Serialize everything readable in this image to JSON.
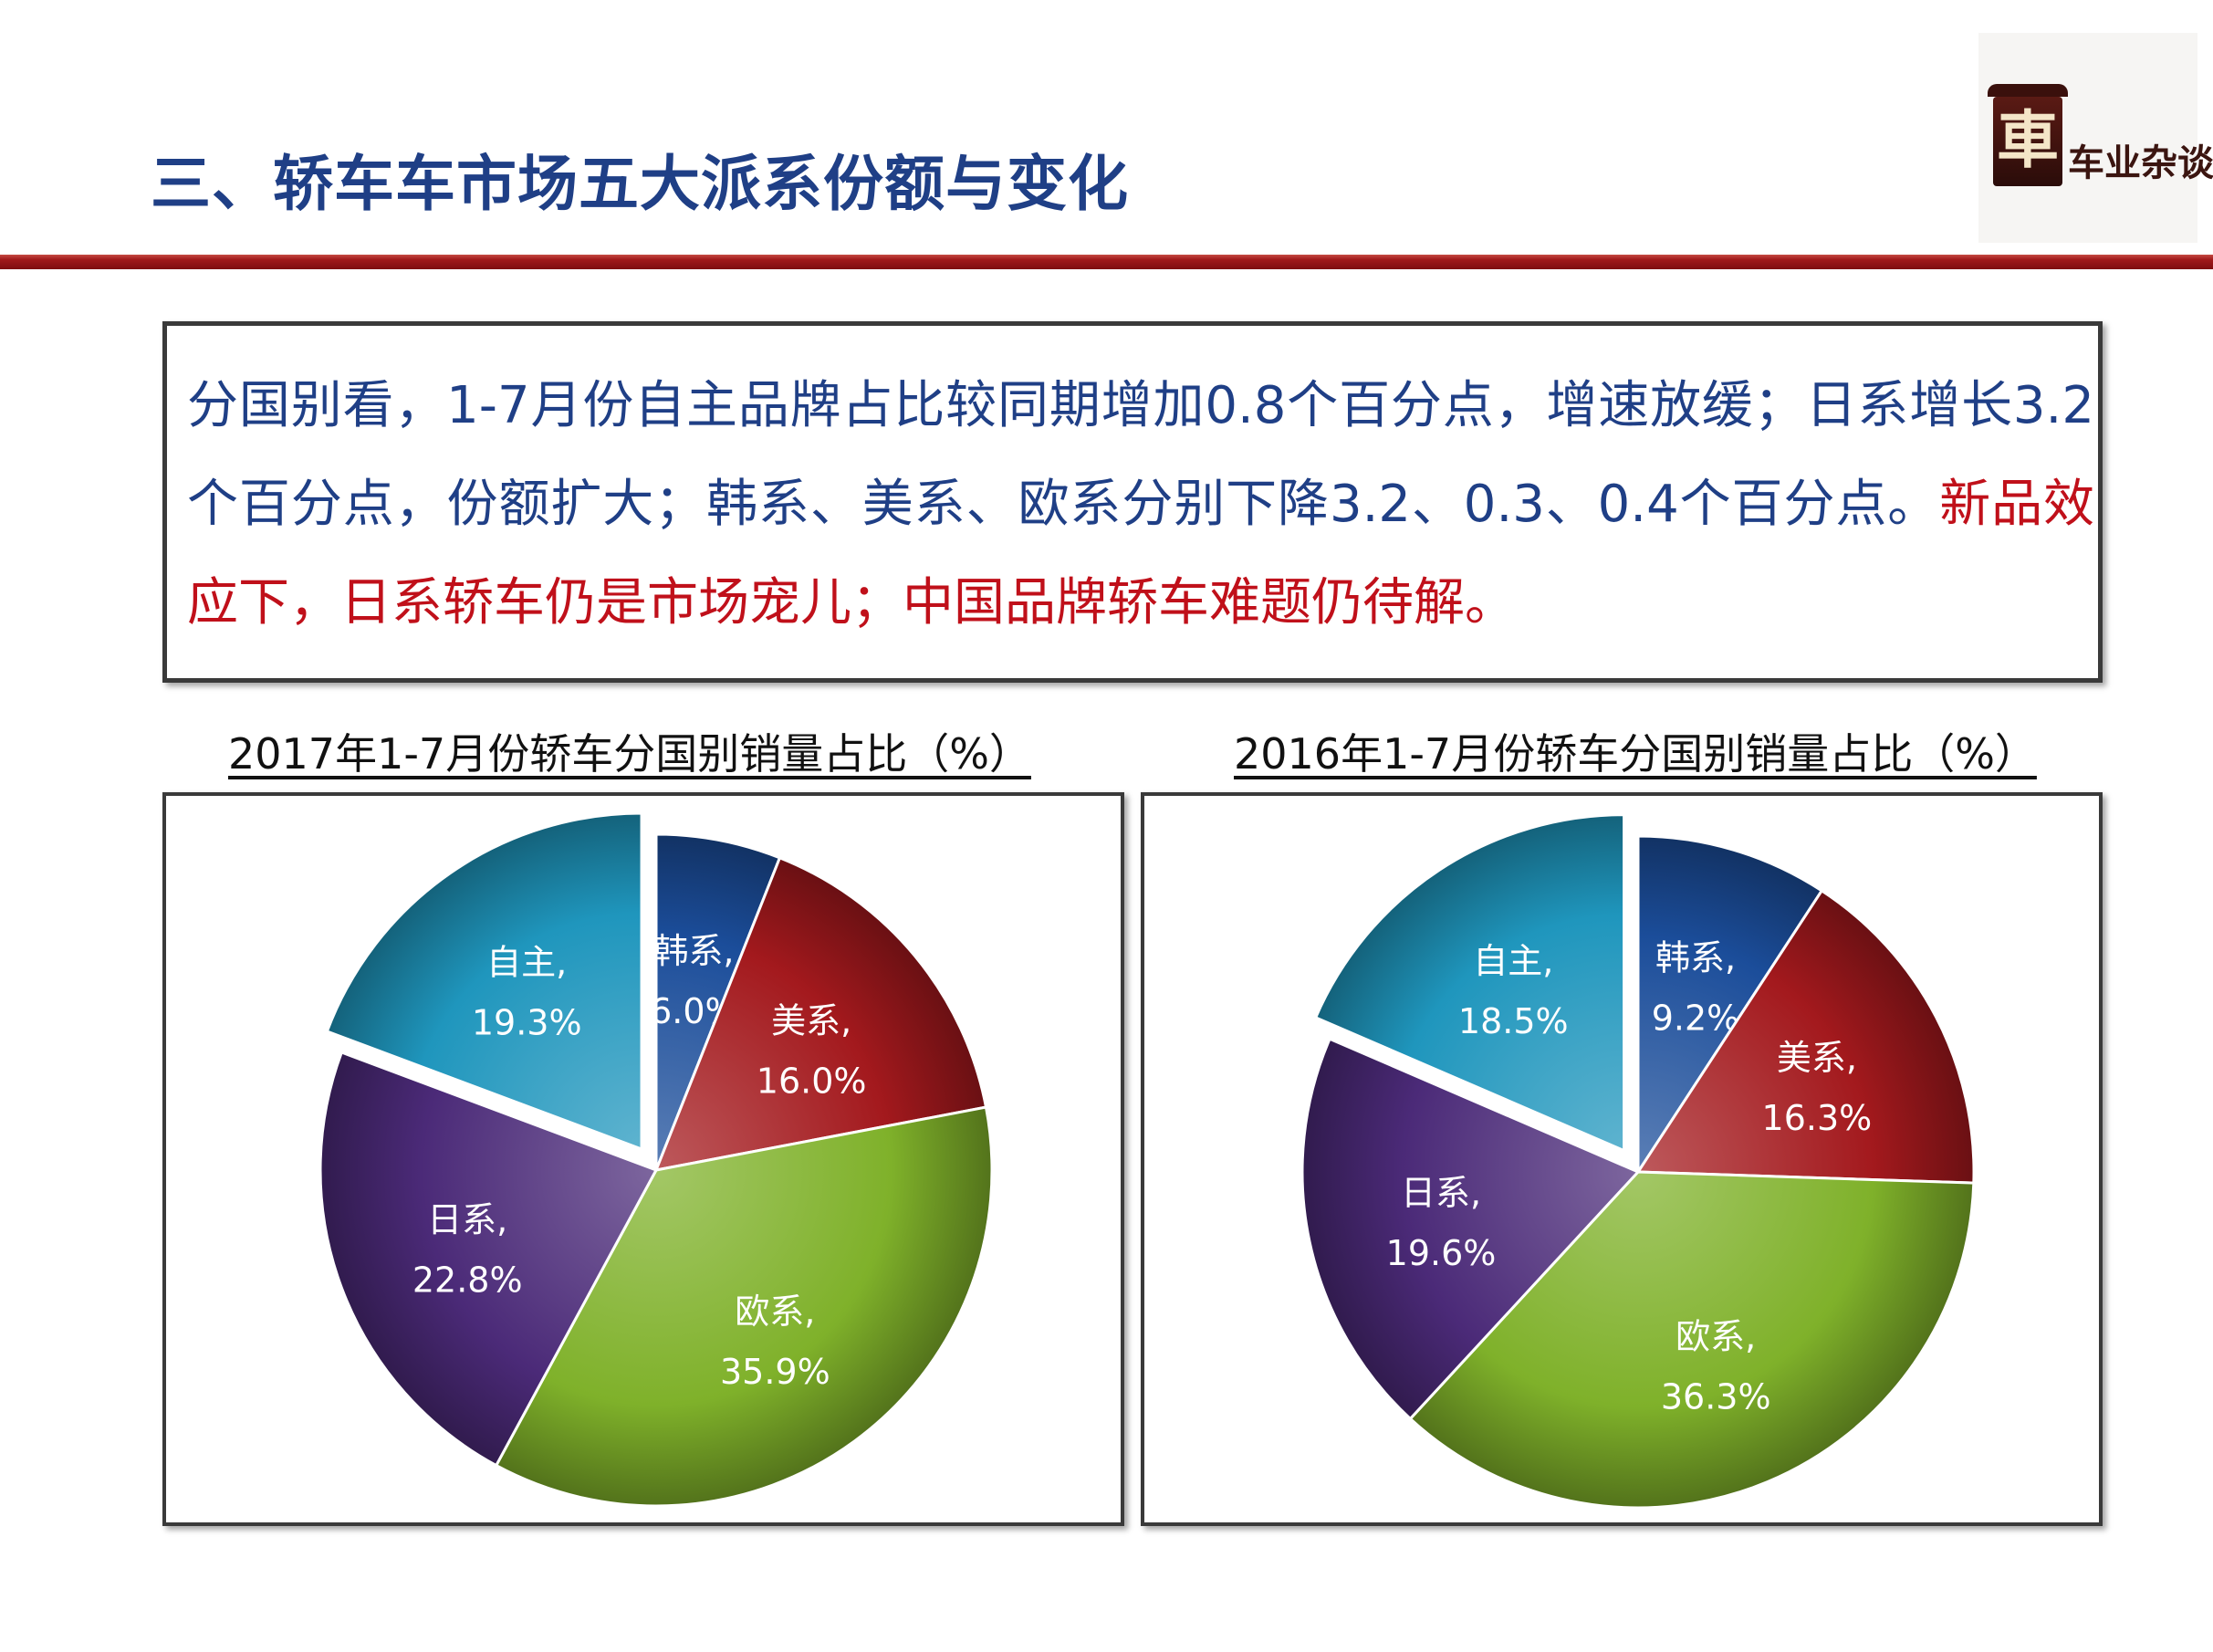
{
  "header": {
    "title": "三、轿车车市场五大派系份额与变化",
    "logo_text": "车业杂谈",
    "logo_mark": "車"
  },
  "summary": {
    "text_part1": "分国别看，1-7月份自主品牌占比较同期增加0.8个百分点，增速放缓；日系增长3.2个百分点，份额扩大；韩系、美系、欧系分别下降3.2、0.3、0.4个百分点。",
    "text_part2": "新品效应下，日系轿车仍是市场宠儿；中国品牌轿车难题仍待解。"
  },
  "colors": {
    "title_blue": "#1f3f86",
    "highlight_red": "#c0101a",
    "rule_red": "#a0191a"
  },
  "chart_data": [
    {
      "type": "pie",
      "title": "2017年1-7月份轿车分国别销量占比（%）",
      "slices": [
        {
          "label": "韩系",
          "value": 6.0,
          "text": "6.0%",
          "color": "#1b4d9a",
          "exploded": false
        },
        {
          "label": "美系",
          "value": 16.0,
          "text": "16.0%",
          "color": "#a3191d",
          "exploded": false
        },
        {
          "label": "欧系",
          "value": 35.9,
          "text": "35.9%",
          "color": "#7fb12a",
          "exploded": false
        },
        {
          "label": "日系",
          "value": 22.8,
          "text": "22.8%",
          "color": "#4b2a78",
          "exploded": false
        },
        {
          "label": "自主",
          "value": 19.3,
          "text": "19.3%",
          "color": "#1f96bd",
          "exploded": true
        }
      ]
    },
    {
      "type": "pie",
      "title": "2016年1-7月份轿车分国别销量占比（%）",
      "slices": [
        {
          "label": "韩系",
          "value": 9.2,
          "text": "9.2%",
          "color": "#1b4d9a",
          "exploded": false
        },
        {
          "label": "美系",
          "value": 16.3,
          "text": "16.3%",
          "color": "#a3191d",
          "exploded": false
        },
        {
          "label": "欧系",
          "value": 36.3,
          "text": "36.3%",
          "color": "#7fb12a",
          "exploded": false
        },
        {
          "label": "日系",
          "value": 19.6,
          "text": "19.6%",
          "color": "#4b2a78",
          "exploded": false
        },
        {
          "label": "自主",
          "value": 18.5,
          "text": "18.5%",
          "color": "#1f96bd",
          "exploded": true
        }
      ]
    }
  ]
}
